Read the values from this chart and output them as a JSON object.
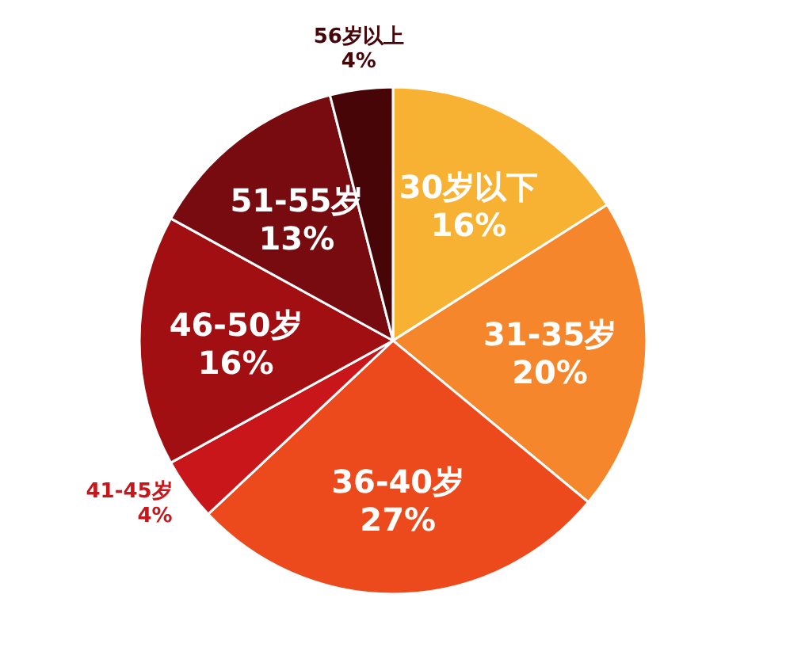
{
  "chart_data": {
    "type": "pie",
    "categories": [
      "30岁以下",
      "31-35岁",
      "36-40岁",
      "41-45岁",
      "46-50岁",
      "51-55岁",
      "56岁以上"
    ],
    "values": [
      16,
      20,
      27,
      4,
      16,
      13,
      4
    ],
    "value_labels": [
      "16%",
      "20%",
      "27%",
      "4%",
      "16%",
      "13%",
      "4%"
    ],
    "colors": [
      "#f8b233",
      "#f6862b",
      "#ec4a1c",
      "#c8161b",
      "#a20f12",
      "#780b10",
      "#470508"
    ]
  }
}
